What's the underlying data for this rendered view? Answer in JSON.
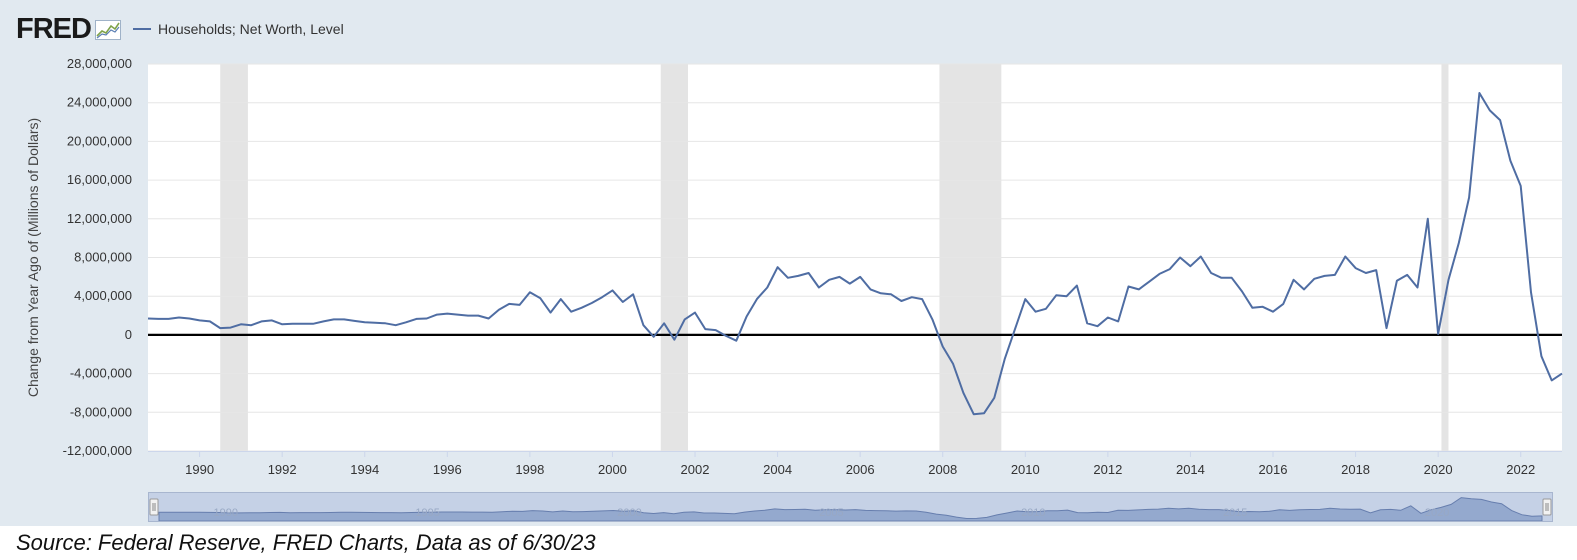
{
  "header": {
    "logo_text": "FRED",
    "logo_icon": "line-chart-icon",
    "legend_label": "Households; Net Worth, Level"
  },
  "footer": {
    "source": "Source: Federal Reserve, FRED Charts, Data as of 6/30/23"
  },
  "colors": {
    "series": "#4f6da3",
    "recession": "#e4e4e4",
    "background": "#e1e9f0",
    "plot": "#ffffff"
  },
  "chart_data": {
    "type": "line",
    "title": "",
    "xlabel": "",
    "ylabel": "Change from Year Ago of (Millions of Dollars)",
    "ylim": [
      -12000000,
      28000000
    ],
    "yticks": [
      28000000,
      24000000,
      20000000,
      16000000,
      12000000,
      8000000,
      4000000,
      0,
      -4000000,
      -8000000,
      -12000000
    ],
    "ytick_labels": [
      "28,000,000",
      "24,000,000",
      "20,000,000",
      "16,000,000",
      "12,000,000",
      "8,000,000",
      "4,000,000",
      "0",
      "-4,000,000",
      "-8,000,000",
      "-12,000,000"
    ],
    "xlim": [
      1988.75,
      2023.0
    ],
    "xticks": [
      1990,
      1992,
      1994,
      1996,
      1998,
      2000,
      2002,
      2004,
      2006,
      2008,
      2010,
      2012,
      2014,
      2016,
      2018,
      2020,
      2022
    ],
    "xtick_labels": [
      "1990",
      "1992",
      "1994",
      "1996",
      "1998",
      "2000",
      "2002",
      "2004",
      "2006",
      "2008",
      "2010",
      "2012",
      "2014",
      "2016",
      "2018",
      "2020",
      "2022"
    ],
    "grid": true,
    "zero_line": true,
    "legend_position": "top-left",
    "recessions": [
      [
        1990.5,
        1991.17
      ],
      [
        2001.17,
        2001.83
      ],
      [
        2007.92,
        2009.42
      ],
      [
        2020.08,
        2020.25
      ]
    ],
    "navigator_labels": [
      "1990",
      "1995",
      "2000",
      "2005",
      "2010",
      "2015",
      "2020"
    ],
    "series": [
      {
        "name": "Households; Net Worth, Level",
        "x": [
          1988.75,
          1989.0,
          1989.25,
          1989.5,
          1989.75,
          1990.0,
          1990.25,
          1990.5,
          1990.75,
          1991.0,
          1991.25,
          1991.5,
          1991.75,
          1992.0,
          1992.25,
          1992.5,
          1992.75,
          1993.0,
          1993.25,
          1993.5,
          1993.75,
          1994.0,
          1994.25,
          1994.5,
          1994.75,
          1995.0,
          1995.25,
          1995.5,
          1995.75,
          1996.0,
          1996.25,
          1996.5,
          1996.75,
          1997.0,
          1997.25,
          1997.5,
          1997.75,
          1998.0,
          1998.25,
          1998.5,
          1998.75,
          1999.0,
          1999.25,
          1999.5,
          1999.75,
          2000.0,
          2000.25,
          2000.5,
          2000.75,
          2001.0,
          2001.25,
          2001.5,
          2001.75,
          2002.0,
          2002.25,
          2002.5,
          2002.75,
          2003.0,
          2003.25,
          2003.5,
          2003.75,
          2004.0,
          2004.25,
          2004.5,
          2004.75,
          2005.0,
          2005.25,
          2005.5,
          2005.75,
          2006.0,
          2006.25,
          2006.5,
          2006.75,
          2007.0,
          2007.25,
          2007.5,
          2007.75,
          2008.0,
          2008.25,
          2008.5,
          2008.75,
          2009.0,
          2009.25,
          2009.5,
          2009.75,
          2010.0,
          2010.25,
          2010.5,
          2010.75,
          2011.0,
          2011.25,
          2011.5,
          2011.75,
          2012.0,
          2012.25,
          2012.5,
          2012.75,
          2013.0,
          2013.25,
          2013.5,
          2013.75,
          2014.0,
          2014.25,
          2014.5,
          2014.75,
          2015.0,
          2015.25,
          2015.5,
          2015.75,
          2016.0,
          2016.25,
          2016.5,
          2016.75,
          2017.0,
          2017.25,
          2017.5,
          2017.75,
          2018.0,
          2018.25,
          2018.5,
          2018.75,
          2019.0,
          2019.25,
          2019.5,
          2019.75,
          2020.0,
          2020.25,
          2020.5,
          2020.75,
          2021.0,
          2021.25,
          2021.5,
          2021.75,
          2022.0,
          2022.25,
          2022.5,
          2022.75,
          2023.0
        ],
        "values": [
          1700000,
          1650000,
          1650000,
          1800000,
          1700000,
          1500000,
          1400000,
          700000,
          750000,
          1100000,
          1000000,
          1400000,
          1500000,
          1100000,
          1150000,
          1150000,
          1150000,
          1400000,
          1600000,
          1600000,
          1450000,
          1300000,
          1250000,
          1200000,
          1000000,
          1300000,
          1650000,
          1700000,
          2100000,
          2200000,
          2100000,
          2000000,
          2000000,
          1700000,
          2600000,
          3200000,
          3100000,
          4400000,
          3800000,
          2300000,
          3700000,
          2400000,
          2800000,
          3300000,
          3900000,
          4600000,
          3400000,
          4200000,
          1000000,
          -200000,
          1200000,
          -500000,
          1600000,
          2300000,
          600000,
          500000,
          -100000,
          -600000,
          1900000,
          3700000,
          4900000,
          7000000,
          5900000,
          6100000,
          6400000,
          4900000,
          5700000,
          6000000,
          5300000,
          6000000,
          4700000,
          4300000,
          4200000,
          3500000,
          3900000,
          3700000,
          1600000,
          -1200000,
          -3000000,
          -6000000,
          -8200000,
          -8100000,
          -6500000,
          -2500000,
          600000,
          3700000,
          2400000,
          2700000,
          4100000,
          4000000,
          5100000,
          1200000,
          900000,
          1800000,
          1400000,
          5000000,
          4700000,
          5500000,
          6300000,
          6800000,
          8000000,
          7100000,
          8100000,
          6400000,
          5900000,
          5900000,
          4500000,
          2800000,
          2900000,
          2400000,
          3200000,
          5700000,
          4700000,
          5800000,
          6100000,
          6200000,
          8100000,
          6900000,
          6400000,
          6700000,
          700000,
          5600000,
          6200000,
          4900000,
          12000000,
          100000,
          5700000,
          9500000,
          14200000,
          25000000,
          23200000,
          22200000,
          18000000,
          15400000,
          4400000,
          -2200000,
          -4700000,
          -4000000
        ]
      }
    ]
  }
}
